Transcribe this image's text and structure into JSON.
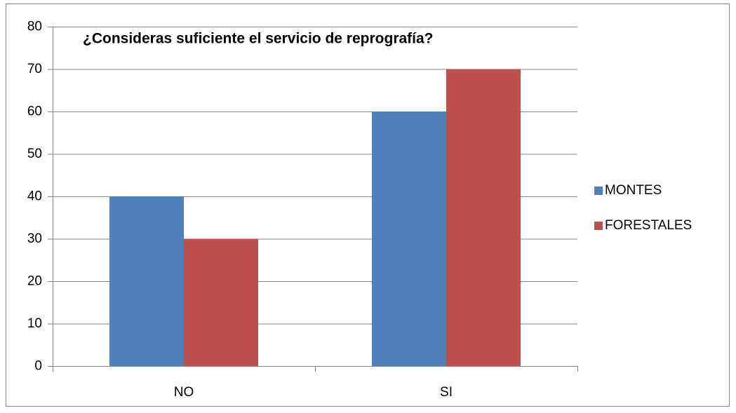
{
  "chart_data": {
    "type": "bar",
    "title": "¿Consideras suficiente el servicio de reprografía?",
    "categories": [
      "NO",
      "SI"
    ],
    "series": [
      {
        "name": "MONTES",
        "color": "#4f81bd",
        "values": [
          40,
          60
        ]
      },
      {
        "name": "FORESTALES",
        "color": "#c0504d",
        "values": [
          30,
          70
        ]
      }
    ],
    "ylim": [
      0,
      80
    ],
    "yticks": [
      0,
      10,
      20,
      30,
      40,
      50,
      60,
      70,
      80
    ],
    "grid": true,
    "legend": "right"
  }
}
